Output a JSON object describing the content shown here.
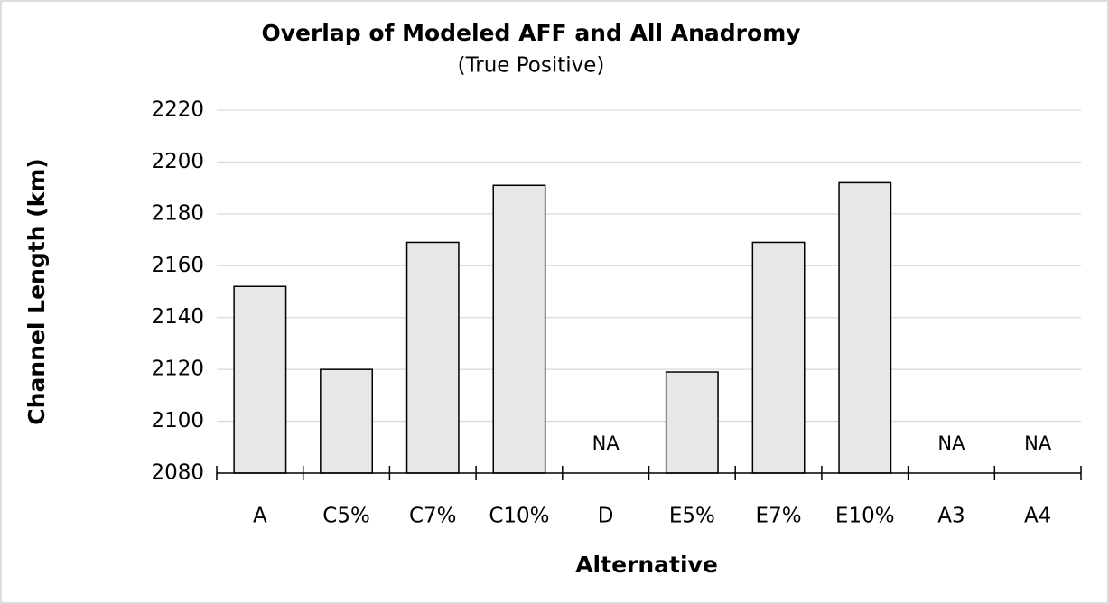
{
  "chart_data": {
    "type": "bar",
    "title": "Overlap of Modeled AFF and All Anadromy",
    "subtitle": "(True Positive)",
    "xlabel": "Alternative",
    "ylabel": "Channel Length (km)",
    "categories": [
      "A",
      "C5%",
      "C7%",
      "C10%",
      "D",
      "E5%",
      "E7%",
      "E10%",
      "A3",
      "A4"
    ],
    "values": [
      2152,
      2120,
      2169,
      2191,
      null,
      2119,
      2169,
      2192,
      null,
      null
    ],
    "value_labels": [
      null,
      null,
      null,
      null,
      "NA",
      null,
      null,
      null,
      "NA",
      "NA"
    ],
    "color": "#e7e7e7",
    "ylim": [
      2080,
      2220
    ],
    "yticks": [
      2080,
      2100,
      2120,
      2140,
      2160,
      2180,
      2200,
      2220
    ],
    "grid": true
  }
}
